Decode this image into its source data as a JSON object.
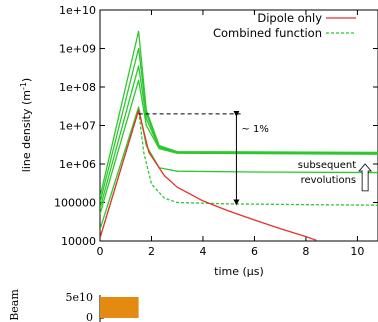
{
  "chart_data": [
    {
      "type": "line",
      "xlabel": "time (μs)",
      "ylabel_main": "line density (m",
      "ylabel_sup": "-1",
      "ylabel_close": ")",
      "xlim": [
        0,
        10.8
      ],
      "ylim": [
        10000,
        10000000000
      ],
      "yscale": "log",
      "xticks": [
        0,
        2,
        4,
        6,
        8,
        10
      ],
      "yticks": [
        10000,
        100000,
        1000000,
        10000000,
        100000000,
        1000000000,
        10000000000
      ],
      "ytick_labels": [
        "10000",
        "100000",
        "1e+06",
        "1e+07",
        "1e+08",
        "1e+09",
        "1e+10"
      ],
      "legend_position": "top-right",
      "colors": {
        "dipole": "#e8302a",
        "combined": "#2ec82e"
      },
      "series": [
        {
          "name": "Dipole only",
          "style": "solid",
          "color": "#e8302a",
          "points": [
            [
              0,
              12000
            ],
            [
              1.5,
              25000000
            ],
            [
              1.9,
              2000000
            ],
            [
              2.5,
              500000
            ],
            [
              3,
              250000
            ],
            [
              4,
              110000
            ],
            [
              5,
              60000
            ],
            [
              6,
              35000
            ],
            [
              7,
              21000
            ],
            [
              8,
              13000
            ],
            [
              8.4,
              10500
            ]
          ]
        },
        {
          "name": "Combined function",
          "style": "dashed",
          "color": "#2ec82e",
          "points": [
            [
              0,
              12000
            ],
            [
              1.5,
              25000000
            ],
            [
              1.7,
              2000000
            ],
            [
              2,
              300000
            ],
            [
              2.5,
              130000
            ],
            [
              3,
              100000
            ],
            [
              5,
              92000
            ],
            [
              8,
              88000
            ],
            [
              10.8,
              85000
            ]
          ]
        },
        {
          "name": "",
          "style": "solid",
          "color": "#2ec82e",
          "points": [
            [
              0,
              20000
            ],
            [
              1.5,
              30000000
            ],
            [
              1.8,
              3000000
            ],
            [
              2.3,
              800000
            ],
            [
              3,
              650000
            ],
            [
              6,
              620000
            ],
            [
              10.8,
              600000
            ]
          ]
        },
        {
          "name": "",
          "style": "solid",
          "color": "#2ec82e",
          "points": [
            [
              0,
              50000
            ],
            [
              1.5,
              150000000
            ],
            [
              1.8,
              10000000
            ],
            [
              2.3,
              2500000
            ],
            [
              3,
              1900000
            ],
            [
              10.8,
              1800000
            ]
          ]
        },
        {
          "name": "",
          "style": "solid",
          "color": "#2ec82e",
          "points": [
            [
              0,
              70000
            ],
            [
              1.5,
              350000000
            ],
            [
              1.8,
              15000000
            ],
            [
              2.3,
              2600000
            ],
            [
              3,
              2000000
            ],
            [
              10.8,
              1900000
            ]
          ]
        },
        {
          "name": "",
          "style": "solid",
          "color": "#2ec82e",
          "points": [
            [
              0,
              100000
            ],
            [
              1.5,
              1000000000
            ],
            [
              1.8,
              20000000
            ],
            [
              2.3,
              2800000
            ],
            [
              3,
              2000000
            ],
            [
              10.8,
              1950000
            ]
          ]
        },
        {
          "name": "",
          "style": "solid",
          "color": "#2ec82e",
          "points": [
            [
              0,
              140000
            ],
            [
              1.5,
              2800000000
            ],
            [
              1.8,
              25000000
            ],
            [
              2.3,
              3000000
            ],
            [
              3,
              2100000
            ],
            [
              10.8,
              2000000
            ]
          ]
        }
      ],
      "annotations": {
        "reference_level": {
          "y": 20000000,
          "x_from": 1.5,
          "x_to": 5.5
        },
        "percent_arrow": {
          "x": 5.3,
          "y_from": 20000000,
          "y_to": 100000,
          "label": "~ 1%"
        },
        "revolutions_label_line1": "subsequent",
        "revolutions_label_line2": "revolutions",
        "revolutions_arrow": {
          "x": 10.3,
          "y_from": 200000,
          "y_to": 1000000
        }
      }
    },
    {
      "type": "bar",
      "ylabel": "Beam",
      "ytick_labels": [
        "5e10",
        "0"
      ],
      "pulse": {
        "x_start": 0,
        "x_end": 1.5,
        "value": 50000000000
      },
      "color": "#e58a10"
    }
  ]
}
